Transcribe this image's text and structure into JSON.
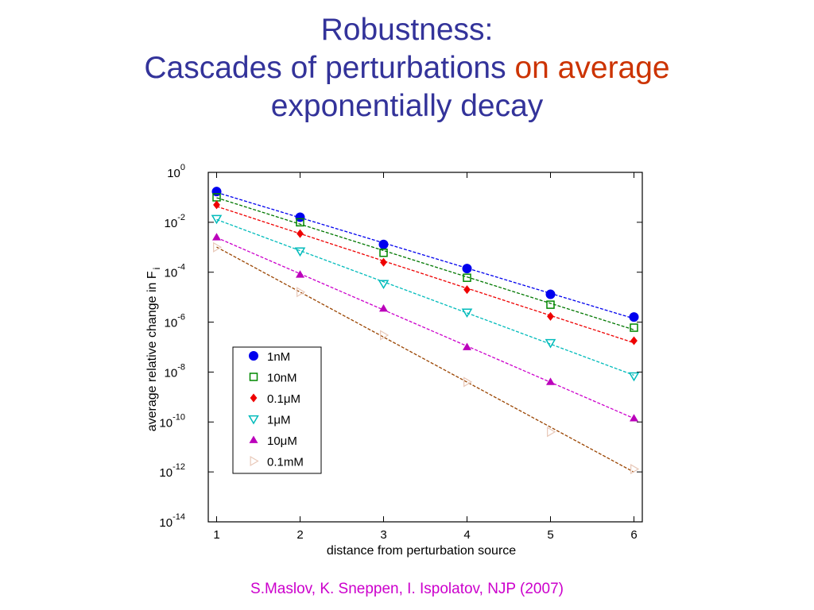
{
  "slide": {
    "title_line1": "Robustness:",
    "title_line2_main": "Cascades of perturbations",
    "title_line2_accent": "on average",
    "title_line3": "exponentially decay",
    "citation": "S.Maslov, K. Sneppen, I. Ispolatov, NJP (2007)"
  },
  "colors": {
    "title": "#33339a",
    "title_accent": "#cc3300",
    "citation": "#cc00cc"
  },
  "chart_data": {
    "type": "scatter",
    "xlabel": "distance from perturbation source",
    "ylabel": "average relative change in F",
    "ylabel_subscript": "i",
    "xlim": [
      0.9,
      6.1
    ],
    "ylim": [
      1e-14,
      1
    ],
    "yscale": "log",
    "x_ticks": [
      "1",
      "2",
      "3",
      "4",
      "5",
      "6"
    ],
    "y_ticks": [
      {
        "base": "10",
        "exp": "0"
      },
      {
        "base": "10",
        "exp": "-2"
      },
      {
        "base": "10",
        "exp": "-4"
      },
      {
        "base": "10",
        "exp": "-6"
      },
      {
        "base": "10",
        "exp": "-8"
      },
      {
        "base": "10",
        "exp": "-10"
      },
      {
        "base": "10",
        "exp": "-12"
      },
      {
        "base": "10",
        "exp": "-14"
      }
    ],
    "legend_position": "center-left",
    "series": [
      {
        "name": "1nM",
        "marker": "circle-filled",
        "color": "#0000ee",
        "line_color": "#0000ee",
        "x": [
          1,
          2,
          3,
          4,
          5,
          6
        ],
        "y": [
          0.17,
          0.016,
          0.0013,
          0.00014,
          1.3e-05,
          1.6e-06
        ]
      },
      {
        "name": "10nM",
        "marker": "square-open",
        "color": "#008800",
        "line_color": "#007700",
        "x": [
          1,
          2,
          3,
          4,
          5,
          6
        ],
        "y": [
          0.1,
          0.01,
          0.0006,
          6e-05,
          5e-06,
          6e-07
        ]
      },
      {
        "name": "0.1μM",
        "marker": "diamond-filled",
        "color": "#ee0000",
        "line_color": "#ee0000",
        "x": [
          1,
          2,
          3,
          4,
          5,
          6
        ],
        "y": [
          0.05,
          0.0035,
          0.00025,
          2e-05,
          1.7e-06,
          1.8e-07
        ]
      },
      {
        "name": "1μM",
        "marker": "triangle-down-open",
        "color": "#00bbbb",
        "line_color": "#00bbbb",
        "x": [
          1,
          2,
          3,
          4,
          5,
          6
        ],
        "y": [
          0.014,
          0.0007,
          3.5e-05,
          2.5e-06,
          1.5e-07,
          7e-09
        ]
      },
      {
        "name": "10μM",
        "marker": "triangle-up-filled",
        "color": "#bb00bb",
        "line_color": "#cc00cc",
        "x": [
          1,
          2,
          3,
          4,
          5,
          6
        ],
        "y": [
          0.0025,
          8e-05,
          3.5e-06,
          1e-07,
          4e-09,
          1.4e-10
        ]
      },
      {
        "name": "0.1mM",
        "marker": "triangle-right-open",
        "color": "#e8c8b8",
        "line_color": "#9a4400",
        "x": [
          1,
          2,
          3,
          4,
          5,
          6
        ],
        "y": [
          0.001,
          1.6e-05,
          3e-07,
          4e-09,
          4e-11,
          1.3e-12
        ]
      }
    ]
  }
}
